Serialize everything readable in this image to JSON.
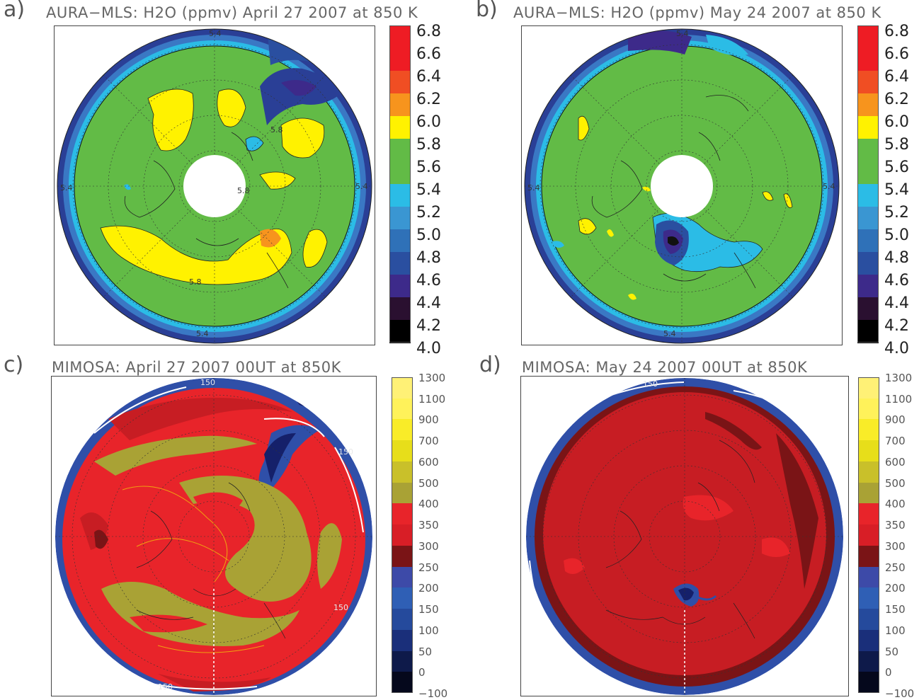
{
  "panels": [
    {
      "label": "a)",
      "title": "AURA−MLS: H2O (ppmv) April 27 2007 at   850 K",
      "contour_labels": [
        "5.4",
        "5.4",
        "5.8",
        "5.8",
        "5.4",
        "5.8",
        "5.4"
      ]
    },
    {
      "label": "b)",
      "title": "AURA−MLS: H2O (ppmv) May 24 2007 at   850 K",
      "contour_labels": [
        "5.4",
        "5.4",
        "5.4",
        "5.4"
      ]
    },
    {
      "label": "c)",
      "title": "MIMOSA: April 27 2007 00UT at 850K",
      "contour_labels": [
        "150",
        "150",
        "150",
        "150"
      ]
    },
    {
      "label": "d)",
      "title": "MIMOSA: May 24 2007 00UT at 850K",
      "contour_labels": [
        "150"
      ]
    }
  ],
  "colorbars": {
    "mls": {
      "ticks": [
        "6.8",
        "6.6",
        "6.4",
        "6.2",
        "6.0",
        "5.8",
        "5.6",
        "5.4",
        "5.2",
        "5.0",
        "4.8",
        "4.6",
        "4.4",
        "4.2",
        "4.0"
      ],
      "colors": [
        "#ee1c24",
        "#ee1c24",
        "#f04e23",
        "#f7941d",
        "#fff200",
        "#62bb46",
        "#62bb46",
        "#2bbce6",
        "#3a96d2",
        "#2f71b8",
        "#2a4fa0",
        "#3d2a8a",
        "#2a1030",
        "#000000"
      ]
    },
    "mimosa": {
      "ticks": [
        "1300",
        "1100",
        "900",
        "700",
        "600",
        "500",
        "400",
        "350",
        "300",
        "250",
        "200",
        "150",
        "100",
        "50",
        "0",
        "−100"
      ],
      "colors": [
        "#fff176",
        "#fff25a",
        "#f9ec28",
        "#e7de1a",
        "#c9c02a",
        "#a9a235",
        "#e8242a",
        "#d81e26",
        "#7a1416",
        "#3d4aa8",
        "#2f5fb5",
        "#254a9c",
        "#1a2f7a",
        "#0e1a4a",
        "#05081c"
      ]
    }
  },
  "colors": {
    "mls_green": "#62bb46",
    "mls_yellow": "#fff200",
    "mls_orange": "#f7941d",
    "mls_cyan": "#2bbce6",
    "mls_blue": "#3a78c4",
    "mls_navy": "#2a3f96",
    "mls_purple": "#3d2a8a",
    "mim_red": "#e8242a",
    "mim_darkred": "#c71d23",
    "mim_maroon": "#7a1416",
    "mim_olive": "#a9a235",
    "mim_blue": "#2f4fa8",
    "mim_navy": "#15206a"
  }
}
